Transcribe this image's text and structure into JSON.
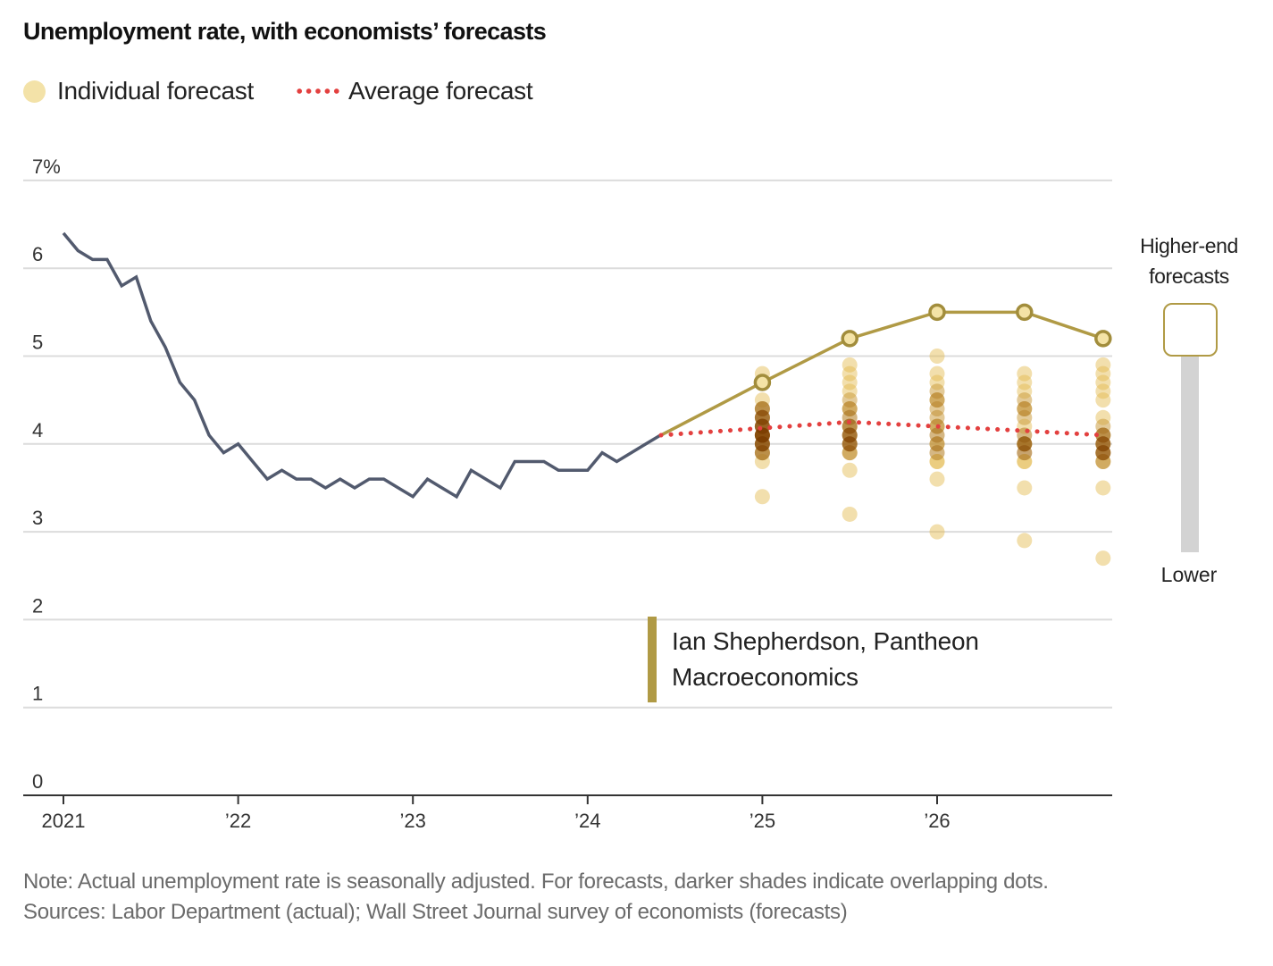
{
  "title": "Unemployment rate, with economists’ forecasts",
  "legend": {
    "individual_label": "Individual forecast",
    "average_label": "Average forecast",
    "individual_color": "#f3e2a8",
    "average_color": "#e3403f"
  },
  "annotation": {
    "line1": "Ian Shepherdson, Pantheon",
    "line2": "Macroeconomics",
    "color": "#b09a45"
  },
  "slider": {
    "top_label_line1": "Higher-end",
    "top_label_line2": "forecasts",
    "bottom_label": "Lower",
    "value": 1.0
  },
  "note": "Note: Actual unemployment rate is seasonally adjusted. For forecasts, darker shades indicate overlapping dots.",
  "sources": "Sources: Labor Department (actual); Wall Street Journal survey of economists (forecasts)",
  "chart_data": {
    "type": "line",
    "title": "Unemployment rate, with economists’ forecasts",
    "xlabel": "",
    "ylabel": "",
    "ylim": [
      0,
      7
    ],
    "xlim": [
      2021.0,
      2026.95
    ],
    "grid": true,
    "legend_position": "top-left",
    "y_ticks": [
      {
        "value": 0,
        "label": "0"
      },
      {
        "value": 1,
        "label": "1"
      },
      {
        "value": 2,
        "label": "2"
      },
      {
        "value": 3,
        "label": "3"
      },
      {
        "value": 4,
        "label": "4"
      },
      {
        "value": 5,
        "label": "5"
      },
      {
        "value": 6,
        "label": "6"
      },
      {
        "value": 7,
        "label": "7%"
      }
    ],
    "x_ticks": [
      {
        "value": 2021,
        "label": "2021"
      },
      {
        "value": 2022,
        "label": "’22"
      },
      {
        "value": 2023,
        "label": "’23"
      },
      {
        "value": 2024,
        "label": "’24"
      },
      {
        "value": 2025,
        "label": "’25"
      },
      {
        "value": 2026,
        "label": "’26"
      }
    ],
    "actual": {
      "name": "Actual unemployment rate",
      "color": "#525a6e",
      "start": 2021.0,
      "step_months": 1,
      "values": [
        6.4,
        6.2,
        6.1,
        6.1,
        5.8,
        5.9,
        5.4,
        5.1,
        4.7,
        4.5,
        4.1,
        3.9,
        4.0,
        3.8,
        3.6,
        3.7,
        3.6,
        3.6,
        3.5,
        3.6,
        3.5,
        3.6,
        3.6,
        3.5,
        3.4,
        3.6,
        3.5,
        3.4,
        3.7,
        3.6,
        3.5,
        3.8,
        3.8,
        3.8,
        3.7,
        3.7,
        3.7,
        3.9,
        3.8,
        3.9,
        4.0,
        4.1
      ]
    },
    "average_forecast": {
      "name": "Average forecast",
      "color": "#e3403f",
      "points": [
        {
          "x": 2024.42,
          "y": 4.1
        },
        {
          "x": 2025.0,
          "y": 4.18
        },
        {
          "x": 2025.5,
          "y": 4.25
        },
        {
          "x": 2026.0,
          "y": 4.2
        },
        {
          "x": 2026.5,
          "y": 4.15
        },
        {
          "x": 2026.95,
          "y": 4.1
        }
      ]
    },
    "highlighted_forecast": {
      "name": "Ian Shepherdson, Pantheon Macroeconomics",
      "color": "#b09a45",
      "points": [
        {
          "x": 2024.42,
          "y": 4.1
        },
        {
          "x": 2025.0,
          "y": 4.7
        },
        {
          "x": 2025.5,
          "y": 5.2
        },
        {
          "x": 2026.0,
          "y": 5.5
        },
        {
          "x": 2026.5,
          "y": 5.5
        },
        {
          "x": 2026.95,
          "y": 5.2
        }
      ]
    },
    "individual_forecasts": [
      {
        "x": 2025.0,
        "values": [
          4.8,
          4.5,
          4.4,
          4.4,
          4.3,
          4.3,
          4.2,
          4.2,
          4.1,
          4.1,
          4.1,
          4.0,
          4.0,
          3.9,
          3.9,
          3.8,
          3.4
        ]
      },
      {
        "x": 2025.5,
        "values": [
          4.9,
          4.8,
          4.7,
          4.6,
          4.5,
          4.4,
          4.4,
          4.3,
          4.2,
          4.2,
          4.1,
          4.1,
          4.0,
          4.0,
          3.9,
          3.9,
          3.7,
          3.2
        ]
      },
      {
        "x": 2026.0,
        "values": [
          5.0,
          4.8,
          4.7,
          4.6,
          4.5,
          4.5,
          4.4,
          4.3,
          4.2,
          4.2,
          4.1,
          4.0,
          4.0,
          3.9,
          3.8,
          3.8,
          3.6,
          3.0
        ]
      },
      {
        "x": 2026.5,
        "values": [
          4.8,
          4.7,
          4.6,
          4.5,
          4.4,
          4.4,
          4.3,
          4.2,
          4.1,
          4.0,
          4.0,
          4.0,
          3.9,
          3.8,
          3.8,
          3.5,
          2.9
        ]
      },
      {
        "x": 2026.95,
        "values": [
          4.9,
          4.8,
          4.7,
          4.6,
          4.5,
          4.3,
          4.2,
          4.1,
          4.1,
          4.0,
          4.0,
          3.9,
          3.9,
          3.8,
          3.8,
          3.5,
          2.7
        ]
      }
    ]
  }
}
